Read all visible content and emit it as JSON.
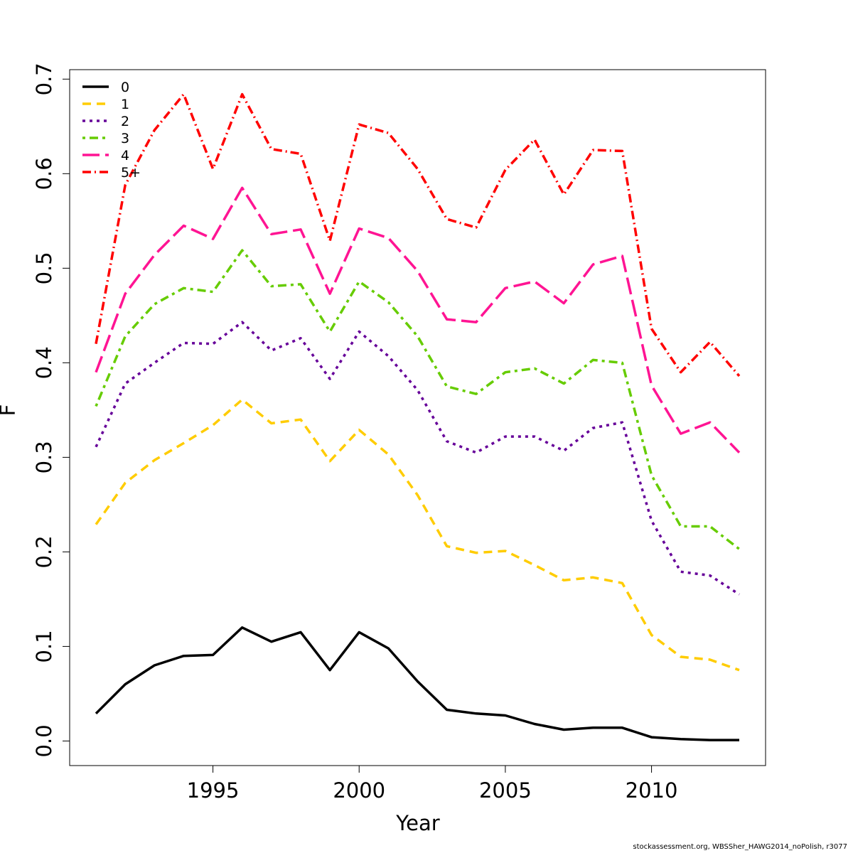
{
  "chart_data": {
    "type": "line",
    "xlabel": "Year",
    "ylabel": "F",
    "xlim": [
      1990.1,
      2013.9
    ],
    "ylim": [
      -0.026,
      0.71
    ],
    "x_ticks": [
      1995,
      2000,
      2005,
      2010
    ],
    "x_tick_labels": [
      "1995",
      "2000",
      "2005",
      "2010"
    ],
    "y_ticks": [
      0.0,
      0.1,
      0.2,
      0.3,
      0.4,
      0.5,
      0.6,
      0.7
    ],
    "y_tick_labels": [
      "0.0",
      "0.1",
      "0.2",
      "0.3",
      "0.4",
      "0.5",
      "0.6",
      "0.7"
    ],
    "grid": false,
    "legend_position": "top-left",
    "x": [
      1991,
      1992,
      1993,
      1994,
      1995,
      1996,
      1997,
      1998,
      1999,
      2000,
      2001,
      2002,
      2003,
      2004,
      2005,
      2006,
      2007,
      2008,
      2009,
      2010,
      2011,
      2012,
      2013
    ],
    "series": [
      {
        "name": "0",
        "color": "#000000",
        "dash": "solid",
        "values": [
          0.029,
          0.06,
          0.08,
          0.09,
          0.091,
          0.12,
          0.105,
          0.115,
          0.075,
          0.115,
          0.098,
          0.063,
          0.033,
          0.029,
          0.027,
          0.018,
          0.012,
          0.014,
          0.014,
          0.004,
          0.002,
          0.001,
          0.001
        ]
      },
      {
        "name": "1",
        "color": "#FFCC00",
        "dash": "12,8",
        "values": [
          0.229,
          0.273,
          0.297,
          0.315,
          0.334,
          0.361,
          0.336,
          0.34,
          0.296,
          0.329,
          0.303,
          0.26,
          0.206,
          0.199,
          0.201,
          0.186,
          0.17,
          0.173,
          0.167,
          0.112,
          0.089,
          0.086,
          0.075
        ]
      },
      {
        "name": "2",
        "color": "#660099",
        "dash": "4,6",
        "values": [
          0.311,
          0.378,
          0.4,
          0.421,
          0.42,
          0.443,
          0.413,
          0.426,
          0.383,
          0.433,
          0.407,
          0.371,
          0.317,
          0.305,
          0.322,
          0.322,
          0.307,
          0.331,
          0.337,
          0.233,
          0.179,
          0.175,
          0.155
        ]
      },
      {
        "name": "3",
        "color": "#66CC00",
        "dash": "4,6,12,6",
        "values": [
          0.354,
          0.428,
          0.462,
          0.479,
          0.475,
          0.519,
          0.481,
          0.483,
          0.433,
          0.486,
          0.464,
          0.428,
          0.375,
          0.367,
          0.39,
          0.394,
          0.378,
          0.403,
          0.4,
          0.281,
          0.227,
          0.227,
          0.203
        ]
      },
      {
        "name": "4",
        "color": "#FF1493",
        "dash": "24,8",
        "values": [
          0.39,
          0.473,
          0.514,
          0.545,
          0.531,
          0.585,
          0.536,
          0.541,
          0.473,
          0.542,
          0.532,
          0.497,
          0.446,
          0.443,
          0.479,
          0.486,
          0.463,
          0.504,
          0.513,
          0.376,
          0.325,
          0.337,
          0.305
        ]
      },
      {
        "name": "5+",
        "color": "#FF0000",
        "dash": "12,5,2,5",
        "values": [
          0.42,
          0.588,
          0.646,
          0.684,
          0.605,
          0.684,
          0.626,
          0.621,
          0.529,
          0.652,
          0.643,
          0.605,
          0.552,
          0.543,
          0.604,
          0.636,
          0.578,
          0.625,
          0.624,
          0.436,
          0.39,
          0.422,
          0.386
        ]
      }
    ]
  },
  "footnote": "stockassessment.org, WBSSher_HAWG2014_noPolish, r3077"
}
